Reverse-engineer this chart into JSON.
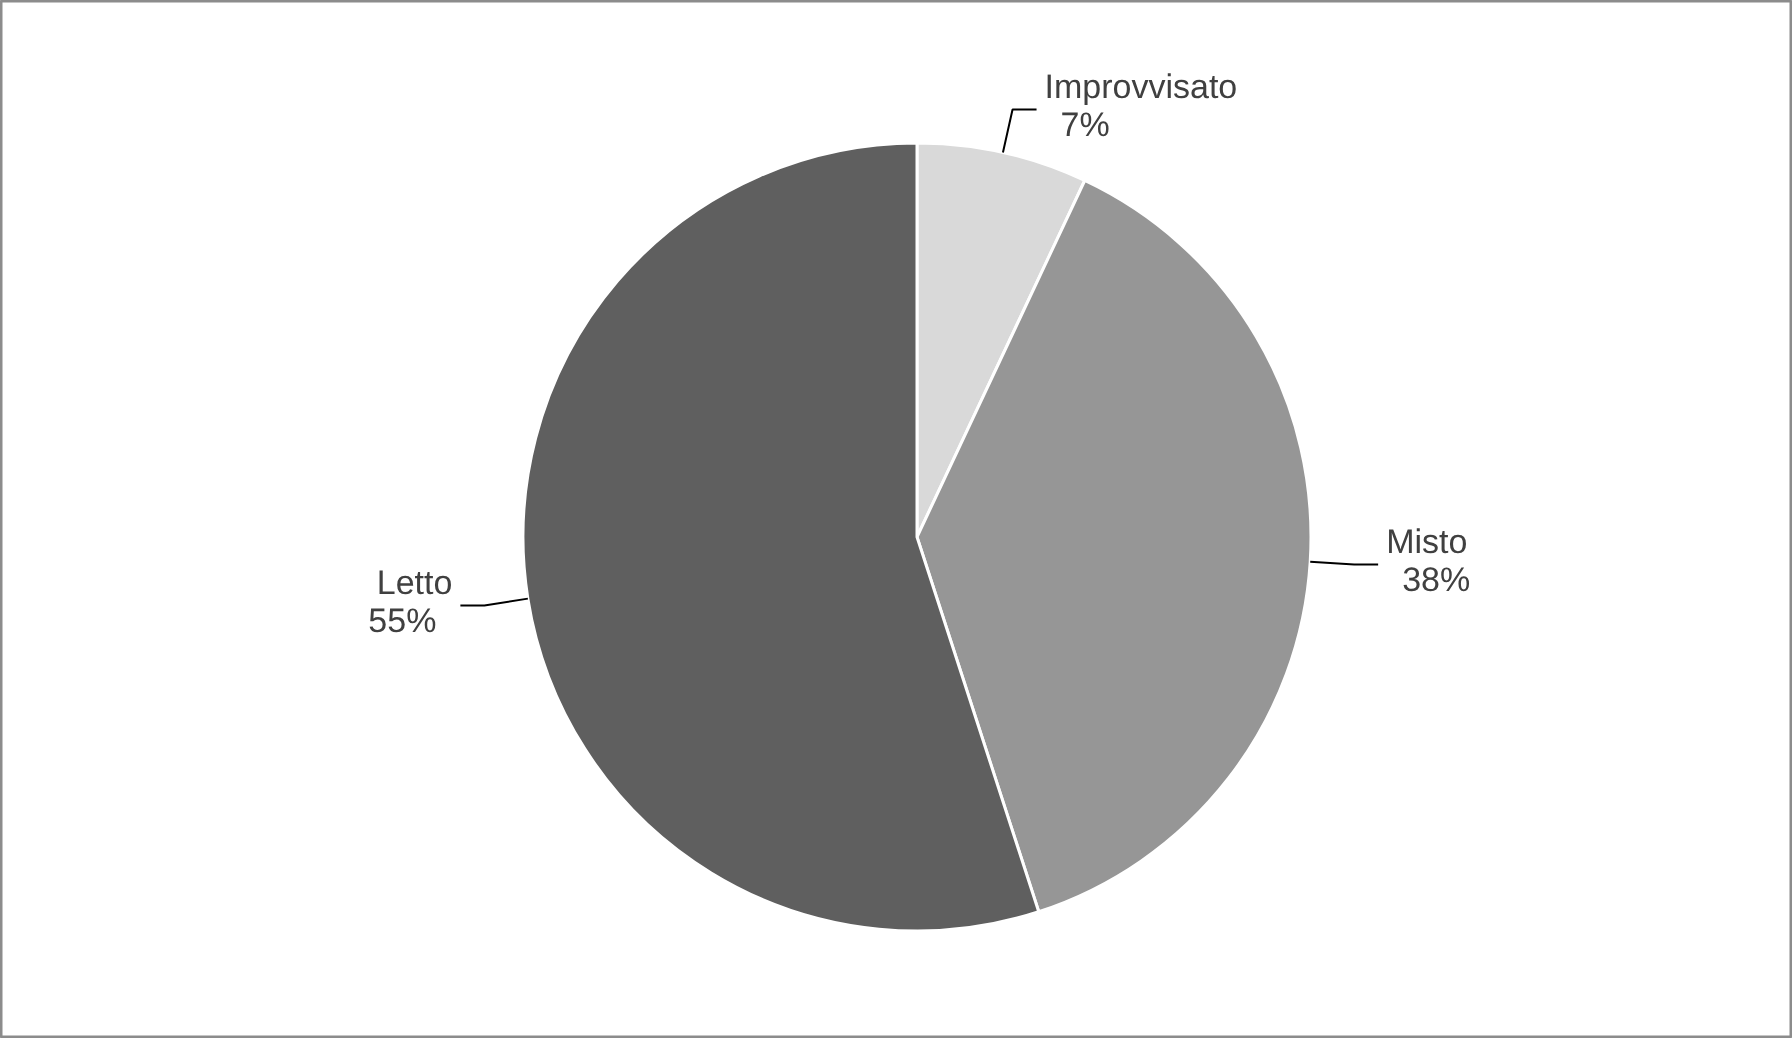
{
  "chart_data": {
    "type": "pie",
    "categories": [
      "Improvvisato",
      "Misto",
      "Letto"
    ],
    "values": [
      7,
      38,
      55
    ],
    "value_labels": [
      "7%",
      "38%",
      "55%"
    ],
    "colors": [
      "#d9d9d9",
      "#969696",
      "#5f5f5f"
    ]
  }
}
